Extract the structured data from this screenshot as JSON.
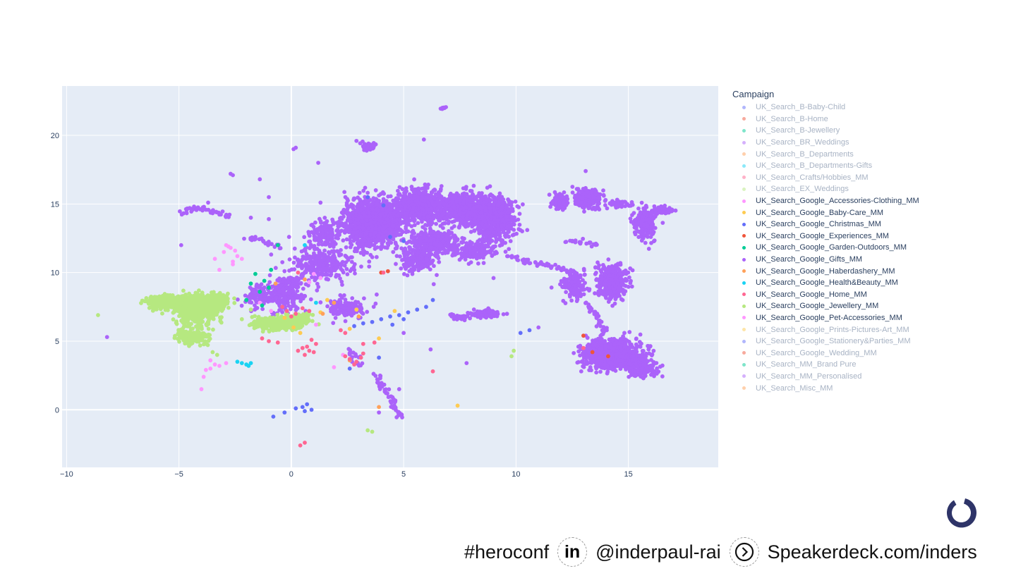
{
  "chart_data": {
    "type": "scatter",
    "xlim": [
      -10.2,
      19
    ],
    "ylim": [
      -4.2,
      23.6
    ],
    "xticks": [
      -10,
      -5,
      0,
      5,
      10,
      15
    ],
    "yticks": [
      0,
      5,
      10,
      15,
      20
    ],
    "xtick_labels": [
      "−10",
      "−5",
      "0",
      "5",
      "10",
      "15"
    ],
    "ytick_labels": [
      "0",
      "5",
      "10",
      "15",
      "20"
    ],
    "grid": true,
    "legend_placement": "right",
    "legend_title": "Campaign",
    "series": [
      {
        "name": "UK_Search_B-Baby-Child",
        "color": "#636efa",
        "faded": true
      },
      {
        "name": "UK_Search_B-Home",
        "color": "#EF553B",
        "faded": true
      },
      {
        "name": "UK_Search_B-Jewellery",
        "color": "#00cc96",
        "faded": true
      },
      {
        "name": "UK_Search_BR_Weddings",
        "color": "#ab63fa",
        "faded": true
      },
      {
        "name": "UK_Search_B_Departments",
        "color": "#FFA15A",
        "faded": true
      },
      {
        "name": "UK_Search_B_Departments-Gifts",
        "color": "#19d3f3",
        "faded": true
      },
      {
        "name": "UK_Search_Crafts/Hobbies_MM",
        "color": "#FF6692",
        "faded": true
      },
      {
        "name": "UK_Search_EX_Weddings",
        "color": "#B6E880",
        "faded": true
      },
      {
        "name": "UK_Search_Google_Accessories-Clothing_MM",
        "color": "#FF97FF",
        "faded": false,
        "points": [
          [
            -3.0,
            11.5
          ],
          [
            -2.6,
            10.8
          ],
          [
            -3.2,
            10.2
          ],
          [
            -2.8,
            11.9
          ],
          [
            -2.4,
            11.2
          ],
          [
            -3.4,
            11.0
          ],
          [
            -3.6,
            3.6
          ],
          [
            -3.2,
            3.2
          ],
          [
            -3.9,
            2.4
          ],
          [
            -4.0,
            1.5
          ],
          [
            -3.8,
            2.9
          ],
          [
            -2.9,
            3.4
          ],
          [
            -1.4,
            7.8
          ],
          [
            0.8,
            9.3
          ],
          [
            1.1,
            6.2
          ],
          [
            1.9,
            3.1
          ],
          [
            2.3,
            4.0
          ],
          [
            -0.9,
            7.2
          ],
          [
            -2.2,
            11.0
          ]
        ]
      },
      {
        "name": "UK_Search_Google_Baby-Care_MM",
        "color": "#FECB52",
        "faded": false,
        "points": [
          [
            0.4,
            5.6
          ],
          [
            1.3,
            7.1
          ],
          [
            7.4,
            0.3
          ],
          [
            2.6,
            5.9
          ],
          [
            0.1,
            6.0
          ],
          [
            4.6,
            7.2
          ],
          [
            1.6,
            8.0
          ],
          [
            -0.3,
            6.7
          ],
          [
            3.9,
            5.2
          ],
          [
            2.9,
            7.3
          ]
        ]
      },
      {
        "name": "UK_Search_Google_Christmas_MM",
        "color": "#636efa",
        "faded": false,
        "points": [
          [
            3.6,
            6.4
          ],
          [
            4.0,
            6.6
          ],
          [
            4.4,
            6.8
          ],
          [
            4.8,
            6.9
          ],
          [
            5.2,
            7.1
          ],
          [
            5.6,
            7.3
          ],
          [
            6.0,
            7.5
          ],
          [
            3.2,
            6.3
          ],
          [
            2.8,
            6.1
          ],
          [
            4.5,
            6.2
          ],
          [
            5.0,
            6.6
          ],
          [
            6.3,
            8.0
          ],
          [
            0.5,
            0.2
          ],
          [
            0.7,
            0.4
          ],
          [
            0.2,
            0.1
          ],
          [
            -0.3,
            -0.2
          ],
          [
            -0.8,
            -0.5
          ],
          [
            0.9,
            0.0
          ],
          [
            0.6,
            -0.1
          ],
          [
            4.4,
            12.6
          ],
          [
            5.0,
            12.3
          ],
          [
            4.1,
            14.9
          ],
          [
            3.4,
            15.5
          ],
          [
            10.6,
            5.8
          ],
          [
            10.2,
            5.6
          ],
          [
            3.9,
            3.8
          ],
          [
            2.6,
            3.0
          ]
        ]
      },
      {
        "name": "UK_Search_Google_Experiences_MM",
        "color": "#EF553B",
        "faded": false,
        "points": [
          [
            4.0,
            10.0
          ],
          [
            4.3,
            10.1
          ],
          [
            13.4,
            4.2
          ],
          [
            14.1,
            3.9
          ],
          [
            13.0,
            5.4
          ]
        ]
      },
      {
        "name": "UK_Search_Google_Garden-Outdoors_MM",
        "color": "#00cc96",
        "faded": false,
        "points": [
          [
            -1.2,
            9.4
          ],
          [
            -1.4,
            8.6
          ],
          [
            -1.6,
            9.9
          ],
          [
            -1.0,
            8.9
          ],
          [
            -1.8,
            9.2
          ],
          [
            -0.9,
            10.2
          ],
          [
            -2.0,
            8.0
          ],
          [
            -1.3,
            7.6
          ],
          [
            -0.6,
            12.0
          ]
        ]
      },
      {
        "name": "UK_Search_Google_Gifts_MM",
        "color": "#ab63fa",
        "faded": false,
        "clusters": [
          {
            "x": 3.6,
            "y": 13.6,
            "sx": 1.0,
            "sy": 1.3,
            "n": 1400
          },
          {
            "x": 5.8,
            "y": 14.8,
            "sx": 1.2,
            "sy": 1.0,
            "n": 650
          },
          {
            "x": 7.8,
            "y": 14.6,
            "sx": 0.9,
            "sy": 1.0,
            "n": 420
          },
          {
            "x": 9.0,
            "y": 13.8,
            "sx": 0.8,
            "sy": 1.4,
            "n": 500
          },
          {
            "x": 6.4,
            "y": 12.3,
            "sx": 0.9,
            "sy": 0.7,
            "n": 300
          },
          {
            "x": 5.6,
            "y": 11.0,
            "sx": 0.7,
            "sy": 0.8,
            "n": 180
          },
          {
            "x": 8.2,
            "y": 11.6,
            "sx": 0.7,
            "sy": 0.6,
            "n": 160
          },
          {
            "x": 1.4,
            "y": 10.6,
            "sx": 1.2,
            "sy": 1.0,
            "n": 260
          },
          {
            "x": 1.5,
            "y": 12.9,
            "sx": 0.6,
            "sy": 0.8,
            "n": 120
          },
          {
            "x": 14.3,
            "y": 4.0,
            "sx": 1.05,
            "sy": 0.85,
            "n": 950
          },
          {
            "x": 15.6,
            "y": 3.0,
            "sx": 0.5,
            "sy": 0.5,
            "n": 160
          },
          {
            "x": 14.3,
            "y": 9.3,
            "sx": 0.55,
            "sy": 1.0,
            "n": 380
          },
          {
            "x": 12.6,
            "y": 9.1,
            "sx": 0.4,
            "sy": 0.8,
            "n": 140
          },
          {
            "x": 15.7,
            "y": 13.6,
            "sx": 0.45,
            "sy": 1.0,
            "n": 160
          },
          {
            "x": 16.6,
            "y": 14.5,
            "sx": 0.5,
            "sy": 0.2,
            "n": 90
          },
          {
            "x": 13.2,
            "y": 15.4,
            "sx": 0.45,
            "sy": 0.6,
            "n": 200
          },
          {
            "x": 11.9,
            "y": 15.2,
            "sx": 0.35,
            "sy": 0.4,
            "n": 90
          },
          {
            "x": 14.5,
            "y": 15.0,
            "sx": 0.4,
            "sy": 0.25,
            "n": 70
          },
          {
            "x": 3.4,
            "y": 19.2,
            "sx": 0.25,
            "sy": 0.25,
            "n": 60
          },
          {
            "x": 8.6,
            "y": 7.0,
            "sx": 0.5,
            "sy": 0.25,
            "n": 80
          },
          {
            "x": 7.5,
            "y": 6.8,
            "sx": 0.3,
            "sy": 0.15,
            "n": 35
          },
          {
            "x": -0.2,
            "y": 8.6,
            "sx": 0.6,
            "sy": 1.1,
            "n": 220
          },
          {
            "x": -1.4,
            "y": 8.2,
            "sx": 0.5,
            "sy": 0.7,
            "n": 110
          },
          {
            "x": 2.4,
            "y": 7.4,
            "sx": 0.8,
            "sy": 0.6,
            "n": 140
          }
        ],
        "paths": [
          [
            [
              9.6,
              11.2
            ],
            [
              10.4,
              10.9
            ],
            [
              11.2,
              10.6
            ],
            [
              12.0,
              10.3
            ],
            [
              12.8,
              9.8
            ]
          ],
          [
            [
              13.2,
              7.8
            ],
            [
              13.4,
              7.2
            ],
            [
              13.7,
              6.5
            ],
            [
              13.9,
              5.8
            ],
            [
              13.8,
              5.2
            ]
          ],
          [
            [
              -4.9,
              14.3
            ],
            [
              -4.5,
              14.7
            ],
            [
              -3.9,
              14.6
            ],
            [
              -3.2,
              14.3
            ],
            [
              -2.7,
              14.1
            ]
          ],
          [
            [
              12.2,
              12.3
            ],
            [
              13.0,
              12.2
            ],
            [
              13.6,
              12.0
            ]
          ],
          [
            [
              -2.0,
              12.5
            ],
            [
              -1.2,
              12.3
            ],
            [
              -0.6,
              11.9
            ]
          ],
          [
            [
              3.8,
              2.6
            ],
            [
              4.0,
              1.8
            ],
            [
              4.4,
              1.0
            ],
            [
              4.6,
              0.3
            ],
            [
              4.8,
              -0.6
            ]
          ],
          [
            [
              6.6,
              21.9
            ],
            [
              6.9,
              22.0
            ]
          ],
          [
            [
              2.6,
              4.4
            ],
            [
              2.8,
              3.8
            ],
            [
              3.1,
              3.2
            ]
          ]
        ],
        "points": [
          [
            -8.2,
            5.3
          ],
          [
            -4.9,
            12.0
          ],
          [
            -2.7,
            17.2
          ],
          [
            -2.6,
            17.1
          ],
          [
            -1.4,
            16.8
          ],
          [
            0.1,
            19.0
          ],
          [
            0.2,
            19.1
          ],
          [
            1.2,
            18.0
          ],
          [
            2.9,
            19.6
          ],
          [
            5.9,
            19.7
          ],
          [
            -1.0,
            15.5
          ],
          [
            -1.0,
            13.9
          ],
          [
            -0.1,
            12.6
          ],
          [
            6.8,
            15.0
          ],
          [
            13.1,
            17.4
          ],
          [
            6.2,
            4.4
          ],
          [
            7.8,
            3.4
          ],
          [
            11.0,
            6.0
          ],
          [
            10.5,
            13.1
          ],
          [
            9.0,
            9.6
          ],
          [
            3.5,
            14.1
          ],
          [
            3.8,
            8.4
          ],
          [
            5.0,
            5.6
          ],
          [
            3.9,
            -0.2
          ],
          [
            4.8,
            1.5
          ],
          [
            1.3,
            15.1
          ],
          [
            -1.8,
            14.0
          ],
          [
            -3.7,
            15.1
          ]
        ]
      },
      {
        "name": "UK_Search_Google_Haberdashery_MM",
        "color": "#FFA15A",
        "faded": false,
        "points": [
          [
            0.6,
            9.5
          ],
          [
            1.9,
            7.8
          ],
          [
            3.9,
            0.2
          ],
          [
            2.6,
            3.6
          ],
          [
            -0.7,
            9.2
          ],
          [
            1.4,
            7.0
          ],
          [
            3.0,
            6.8
          ]
        ]
      },
      {
        "name": "UK_Search_Google_Health&Beauty_MM",
        "color": "#19d3f3",
        "faded": false,
        "points": [
          [
            -2.2,
            3.4
          ],
          [
            -2.0,
            3.3
          ],
          [
            -1.9,
            3.2
          ],
          [
            -2.4,
            3.5
          ],
          [
            -1.8,
            3.4
          ],
          [
            0.6,
            12.0
          ],
          [
            1.1,
            7.8
          ]
        ]
      },
      {
        "name": "UK_Search_Google_Home_MM",
        "color": "#FF6692",
        "faded": false,
        "points": [
          [
            0.8,
            4.3
          ],
          [
            0.7,
            4.6
          ],
          [
            1.0,
            4.2
          ],
          [
            0.5,
            4.5
          ],
          [
            1.1,
            4.8
          ],
          [
            0.9,
            5.1
          ],
          [
            0.3,
            4.3
          ],
          [
            0.6,
            4.0
          ],
          [
            2.6,
            3.7
          ],
          [
            2.9,
            3.5
          ],
          [
            3.1,
            3.8
          ],
          [
            2.4,
            3.9
          ],
          [
            2.8,
            3.3
          ],
          [
            3.2,
            4.1
          ],
          [
            2.2,
            5.8
          ],
          [
            2.4,
            5.6
          ],
          [
            -1.0,
            5.0
          ],
          [
            -1.3,
            5.2
          ],
          [
            -0.6,
            4.9
          ],
          [
            -0.2,
            7.2
          ],
          [
            0.2,
            7.0
          ],
          [
            0.5,
            7.4
          ],
          [
            0.0,
            6.8
          ],
          [
            -0.4,
            7.5
          ],
          [
            0.8,
            7.2
          ],
          [
            0.3,
            10.0
          ],
          [
            0.6,
            -2.4
          ],
          [
            0.4,
            -2.6
          ],
          [
            6.3,
            2.8
          ],
          [
            13.0,
            4.5
          ],
          [
            4.1,
            10.0
          ],
          [
            3.2,
            4.8
          ],
          [
            3.7,
            4.9
          ]
        ]
      },
      {
        "name": "UK_Search_Google_Jewellery_MM",
        "color": "#B6E880",
        "faded": false,
        "clusters": [
          {
            "x": -5.4,
            "y": 7.8,
            "sx": 0.8,
            "sy": 0.4,
            "n": 420
          },
          {
            "x": -4.2,
            "y": 7.3,
            "sx": 0.7,
            "sy": 0.9,
            "n": 520
          },
          {
            "x": -3.3,
            "y": 7.8,
            "sx": 0.4,
            "sy": 0.5,
            "n": 180
          },
          {
            "x": -4.4,
            "y": 5.4,
            "sx": 0.6,
            "sy": 0.5,
            "n": 180
          },
          {
            "x": -0.6,
            "y": 6.3,
            "sx": 0.8,
            "sy": 0.4,
            "n": 380
          },
          {
            "x": 0.3,
            "y": 6.6,
            "sx": 0.5,
            "sy": 0.3,
            "n": 150
          }
        ],
        "points": [
          [
            -8.6,
            6.9
          ],
          [
            -3.5,
            4.2
          ],
          [
            -3.3,
            4.0
          ],
          [
            3.4,
            -1.5
          ],
          [
            3.6,
            -1.6
          ],
          [
            9.8,
            3.9
          ],
          [
            9.9,
            4.3
          ],
          [
            -1.8,
            7.3
          ],
          [
            -2.2,
            6.6
          ]
        ]
      },
      {
        "name": "UK_Search_Google_Pet-Accessories_MM",
        "color": "#FF97FF",
        "faded": false,
        "points": [
          [
            -2.9,
            12.0
          ],
          [
            -2.7,
            11.8
          ],
          [
            -2.5,
            11.6
          ],
          [
            -2.6,
            10.6
          ],
          [
            1.0,
            9.9
          ],
          [
            1.3,
            9.6
          ],
          [
            -3.6,
            3.0
          ],
          [
            -3.4,
            3.3
          ]
        ]
      },
      {
        "name": "UK_Search_Google_Prints-Pictures-Art_MM",
        "color": "#FECB52",
        "faded": true
      },
      {
        "name": "UK_Search_Google_Stationery&Parties_MM",
        "color": "#636efa",
        "faded": true
      },
      {
        "name": "UK_Search_Google_Wedding_MM",
        "color": "#EF553B",
        "faded": true
      },
      {
        "name": "UK_Search_MM_Brand Pure",
        "color": "#00cc96",
        "faded": true
      },
      {
        "name": "UK_Search_MM_Personalised",
        "color": "#ab63fa",
        "faded": true
      },
      {
        "name": "UK_Search_Misc_MM",
        "color": "#FFA15A",
        "faded": true
      }
    ]
  },
  "footer": {
    "hashtag": "#heroconf",
    "linkedin_label": "in",
    "handle": "@inderpaul-rai",
    "site": "Speakerdeck.com/inders"
  }
}
